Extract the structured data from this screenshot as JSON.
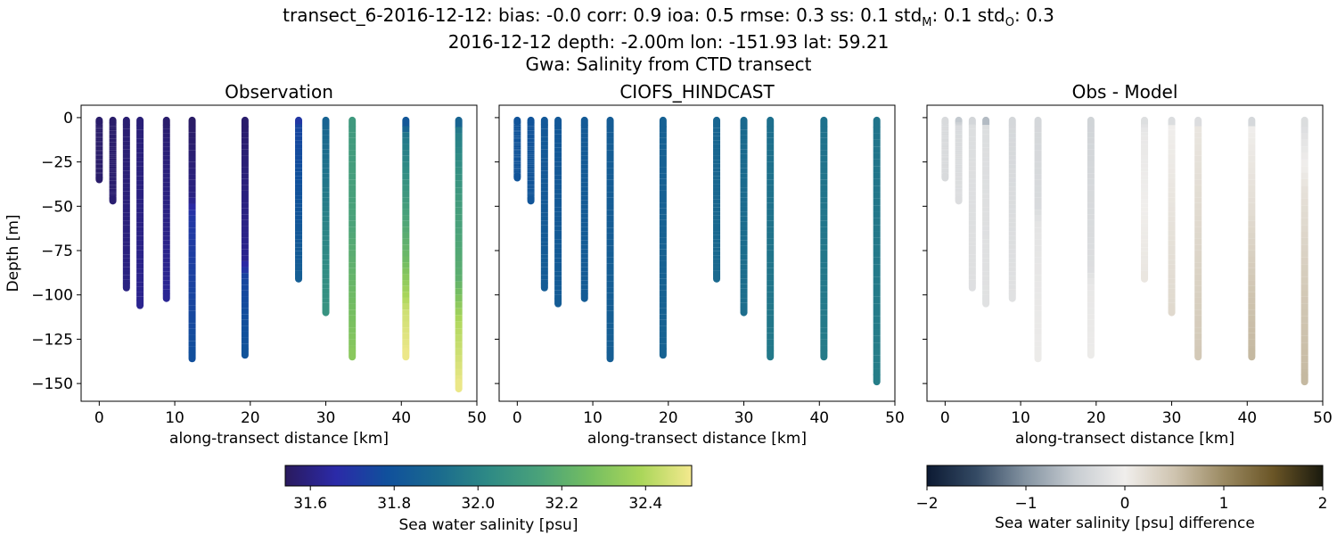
{
  "figure": {
    "title_line1_prefix": "transect_6-2016-12-12: bias: -0.0  corr: 0.9  ioa: 0.5  rmse: 0.3  ss: 0.1  std",
    "title_line1_sub_m": "M",
    "title_line1_mid": ": 0.1  std",
    "title_line1_sub_o": "O",
    "title_line1_end": ": 0.3",
    "title_line2": "2016-12-12 depth: -2.00m lon: -151.93 lat: 59.21",
    "title_line3": "Gwa: Salinity from CTD transect"
  },
  "chart_data": [
    {
      "type": "scatter",
      "title": "Observation",
      "xlabel": "along-transect distance [km]",
      "ylabel": "Depth [m]",
      "xlim": [
        -2.4,
        50
      ],
      "ylim": [
        -160,
        7
      ],
      "xticks": [
        0,
        10,
        20,
        30,
        40,
        50
      ],
      "yticks": [
        0,
        -25,
        -50,
        -75,
        -100,
        -125,
        -150
      ],
      "colormap": "haline",
      "clim": [
        31.54,
        32.51
      ],
      "casts": [
        {
          "x": 0.0,
          "maxdepth": -35,
          "profile": [
            [
              0,
              31.56
            ],
            [
              -35,
              31.56
            ]
          ]
        },
        {
          "x": 1.8,
          "maxdepth": -47,
          "profile": [
            [
              0,
              31.56
            ],
            [
              -47,
              31.57
            ]
          ]
        },
        {
          "x": 3.6,
          "maxdepth": -96,
          "profile": [
            [
              0,
              31.57
            ],
            [
              -96,
              31.6
            ]
          ]
        },
        {
          "x": 5.4,
          "maxdepth": -106,
          "profile": [
            [
              0,
              31.58
            ],
            [
              -106,
              31.62
            ]
          ]
        },
        {
          "x": 8.9,
          "maxdepth": -102,
          "profile": [
            [
              0,
              31.56
            ],
            [
              -15,
              31.58
            ],
            [
              -102,
              31.63
            ]
          ]
        },
        {
          "x": 12.3,
          "maxdepth": -136,
          "profile": [
            [
              0,
              31.55
            ],
            [
              -45,
              31.6
            ],
            [
              -55,
              31.7
            ],
            [
              -136,
              31.78
            ]
          ]
        },
        {
          "x": 19.3,
          "maxdepth": -134,
          "profile": [
            [
              0,
              31.56
            ],
            [
              -80,
              31.62
            ],
            [
              -90,
              31.75
            ],
            [
              -134,
              31.8
            ]
          ]
        },
        {
          "x": 26.4,
          "maxdepth": -91,
          "profile": [
            [
              0,
              31.65
            ],
            [
              -5,
              31.75
            ],
            [
              -91,
              31.85
            ]
          ]
        },
        {
          "x": 30.0,
          "maxdepth": -110,
          "profile": [
            [
              0,
              31.7
            ],
            [
              -3,
              31.88
            ],
            [
              -60,
              32.0
            ],
            [
              -110,
              32.07
            ]
          ]
        },
        {
          "x": 33.5,
          "maxdepth": -135,
          "profile": [
            [
              0,
              31.8
            ],
            [
              -3,
              32.1
            ],
            [
              -60,
              32.15
            ],
            [
              -100,
              32.25
            ],
            [
              -135,
              32.32
            ]
          ]
        },
        {
          "x": 40.6,
          "maxdepth": -135,
          "profile": [
            [
              0,
              31.75
            ],
            [
              -10,
              31.95
            ],
            [
              -45,
              32.1
            ],
            [
              -80,
              32.25
            ],
            [
              -110,
              32.45
            ],
            [
              -135,
              32.5
            ]
          ]
        },
        {
          "x": 47.6,
          "maxdepth": -153,
          "profile": [
            [
              0,
              31.8
            ],
            [
              -8,
              31.98
            ],
            [
              -50,
              32.12
            ],
            [
              -90,
              32.2
            ],
            [
              -115,
              32.4
            ],
            [
              -153,
              32.5
            ]
          ]
        }
      ]
    },
    {
      "type": "scatter",
      "title": "CIOFS_HINDCAST",
      "xlabel": "along-transect distance [km]",
      "xlim": [
        -2.4,
        50
      ],
      "ylim": [
        -160,
        7
      ],
      "xticks": [
        0,
        10,
        20,
        30,
        40,
        50
      ],
      "colormap": "haline",
      "clim": [
        31.54,
        32.51
      ],
      "casts": [
        {
          "x": 0.0,
          "maxdepth": -34,
          "profile": [
            [
              0,
              31.8
            ],
            [
              -34,
              31.8
            ]
          ]
        },
        {
          "x": 1.8,
          "maxdepth": -47,
          "profile": [
            [
              0,
              31.8
            ],
            [
              -47,
              31.81
            ]
          ]
        },
        {
          "x": 3.6,
          "maxdepth": -96,
          "profile": [
            [
              0,
              31.82
            ],
            [
              -96,
              31.84
            ]
          ]
        },
        {
          "x": 5.4,
          "maxdepth": -105,
          "profile": [
            [
              0,
              31.82
            ],
            [
              -105,
              31.84
            ]
          ]
        },
        {
          "x": 8.9,
          "maxdepth": -102,
          "profile": [
            [
              0,
              31.83
            ],
            [
              -102,
              31.84
            ]
          ]
        },
        {
          "x": 12.3,
          "maxdepth": -136,
          "profile": [
            [
              0,
              31.84
            ],
            [
              -136,
              31.85
            ]
          ]
        },
        {
          "x": 19.3,
          "maxdepth": -134,
          "profile": [
            [
              0,
              31.86
            ],
            [
              -134,
              31.87
            ]
          ]
        },
        {
          "x": 26.4,
          "maxdepth": -91,
          "profile": [
            [
              0,
              31.88
            ],
            [
              -91,
              31.9
            ]
          ]
        },
        {
          "x": 30.0,
          "maxdepth": -110,
          "profile": [
            [
              0,
              31.9
            ],
            [
              -110,
              31.92
            ]
          ]
        },
        {
          "x": 33.5,
          "maxdepth": -135,
          "profile": [
            [
              0,
              31.92
            ],
            [
              -135,
              31.96
            ]
          ]
        },
        {
          "x": 40.6,
          "maxdepth": -135,
          "profile": [
            [
              0,
              31.93
            ],
            [
              -135,
              31.97
            ]
          ]
        },
        {
          "x": 47.6,
          "maxdepth": -149,
          "profile": [
            [
              0,
              31.94
            ],
            [
              -149,
              31.98
            ]
          ]
        }
      ]
    },
    {
      "type": "scatter",
      "title": "Obs - Model",
      "xlabel": "along-transect distance [km]",
      "xlim": [
        -2.4,
        50
      ],
      "ylim": [
        -160,
        7
      ],
      "xticks": [
        0,
        10,
        20,
        30,
        40,
        50
      ],
      "colormap": "diff",
      "clim": [
        -2,
        2
      ],
      "casts": [
        {
          "x": 0.0,
          "maxdepth": -34,
          "profile": [
            [
              0,
              -0.3
            ],
            [
              -34,
              -0.3
            ]
          ]
        },
        {
          "x": 1.8,
          "maxdepth": -47,
          "profile": [
            [
              0,
              -0.7
            ],
            [
              -5,
              -0.3
            ],
            [
              -47,
              -0.25
            ]
          ]
        },
        {
          "x": 3.6,
          "maxdepth": -96,
          "profile": [
            [
              0,
              -0.5
            ],
            [
              -5,
              -0.25
            ],
            [
              -96,
              -0.22
            ]
          ]
        },
        {
          "x": 5.4,
          "maxdepth": -105,
          "profile": [
            [
              0,
              -1.6
            ],
            [
              -4,
              -0.25
            ],
            [
              -105,
              -0.2
            ]
          ]
        },
        {
          "x": 8.9,
          "maxdepth": -102,
          "profile": [
            [
              0,
              -0.35
            ],
            [
              -102,
              -0.2
            ]
          ]
        },
        {
          "x": 12.3,
          "maxdepth": -136,
          "profile": [
            [
              0,
              -0.35
            ],
            [
              -50,
              -0.3
            ],
            [
              -60,
              -0.15
            ],
            [
              -136,
              -0.05
            ]
          ]
        },
        {
          "x": 19.3,
          "maxdepth": -134,
          "profile": [
            [
              0,
              -0.4
            ],
            [
              -85,
              -0.25
            ],
            [
              -95,
              -0.1
            ],
            [
              -134,
              -0.05
            ]
          ]
        },
        {
          "x": 26.4,
          "maxdepth": -91,
          "profile": [
            [
              0,
              -0.3
            ],
            [
              -8,
              -0.1
            ],
            [
              -91,
              0.1
            ]
          ]
        },
        {
          "x": 30.0,
          "maxdepth": -110,
          "profile": [
            [
              0,
              -0.6
            ],
            [
              -5,
              0.0
            ],
            [
              -60,
              0.15
            ],
            [
              -110,
              0.25
            ]
          ]
        },
        {
          "x": 33.5,
          "maxdepth": -135,
          "profile": [
            [
              0,
              -1.6
            ],
            [
              -4,
              0.1
            ],
            [
              -60,
              0.25
            ],
            [
              -135,
              0.45
            ]
          ]
        },
        {
          "x": 40.6,
          "maxdepth": -135,
          "profile": [
            [
              0,
              -1.6
            ],
            [
              -4,
              0.0
            ],
            [
              -50,
              0.2
            ],
            [
              -100,
              0.5
            ],
            [
              -135,
              0.6
            ]
          ]
        },
        {
          "x": 47.6,
          "maxdepth": -149,
          "profile": [
            [
              0,
              -0.3
            ],
            [
              -40,
              0.15
            ],
            [
              -100,
              0.45
            ],
            [
              -149,
              0.6
            ]
          ]
        }
      ]
    }
  ],
  "colorbars": [
    {
      "label": "Sea water salinity [psu]",
      "colormap": "haline",
      "range": [
        31.54,
        32.51
      ],
      "ticks": [
        31.6,
        31.8,
        32.0,
        32.2,
        32.4
      ],
      "tick_labels": [
        "31.6",
        "31.8",
        "32.0",
        "32.2",
        "32.4"
      ]
    },
    {
      "label": "Sea water salinity [psu] difference",
      "colormap": "diff",
      "range": [
        -2,
        2
      ],
      "ticks": [
        -2,
        -1,
        0,
        1,
        2
      ],
      "tick_labels": [
        "−2",
        "−1",
        "0",
        "1",
        "2"
      ]
    }
  ],
  "colormaps": {
    "haline": [
      "#2a1a5e",
      "#2b2aa8",
      "#10509c",
      "#1a6a8e",
      "#2e8a85",
      "#4aa27a",
      "#74be61",
      "#aad65a",
      "#f4e98e"
    ],
    "diff": [
      "#0c1a33",
      "#344a64",
      "#8594a2",
      "#c8cdd2",
      "#f0eeec",
      "#cfc4b0",
      "#9b8a62",
      "#6a5526",
      "#1a1a0e"
    ]
  }
}
